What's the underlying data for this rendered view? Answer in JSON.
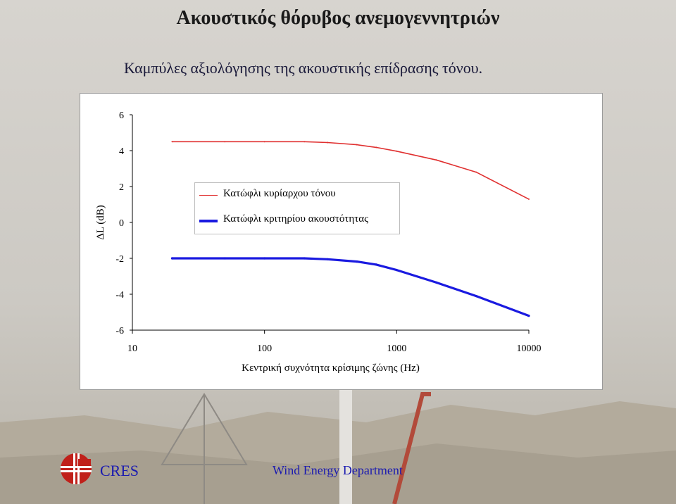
{
  "header": {
    "title": "Ακουστικός θόρυβος ανεμογεννητριών",
    "subtitle": "Καμπύλες αξιολόγησης της ακουστικής επίδρασης τόνου."
  },
  "chart_data": {
    "type": "line",
    "xscale": "log",
    "xlim": [
      10,
      10000
    ],
    "ylim": [
      -6,
      6
    ],
    "xticks": [
      "10",
      "100",
      "1000",
      "10000"
    ],
    "yticks": [
      "6",
      "4",
      "2",
      "0",
      "-2",
      "-4",
      "-6"
    ],
    "xlabel": "Κεντρική συχνότητα κρίσιμης ζώνης  (Hz)",
    "ylabel": "ΔL  (dB)",
    "grid": false,
    "legend_position": "center-left",
    "series": [
      {
        "name": "Κατώφλι κυρίαρχου τόνου",
        "color": "#e03030",
        "x": [
          20,
          50,
          100,
          200,
          300,
          500,
          700,
          1000,
          2000,
          4000,
          10000
        ],
        "y": [
          4.5,
          4.5,
          4.5,
          4.5,
          4.45,
          4.33,
          4.18,
          3.97,
          3.48,
          2.8,
          1.3
        ]
      },
      {
        "name": "Κατώφλι κριτηρίου ακουστότητας",
        "color": "#1a1ae0",
        "x": [
          20,
          50,
          100,
          200,
          300,
          500,
          700,
          1000,
          2000,
          4000,
          10000
        ],
        "y": [
          -2.0,
          -2.0,
          -2.0,
          -2.0,
          -2.05,
          -2.18,
          -2.35,
          -2.65,
          -3.35,
          -4.1,
          -5.2
        ]
      }
    ]
  },
  "footer": {
    "brand": "CRES",
    "department": "Wind Energy Department"
  },
  "colors": {
    "title": "#1a1a1a",
    "footer_text": "#1a1ab0",
    "logo_red": "#c0201a"
  }
}
